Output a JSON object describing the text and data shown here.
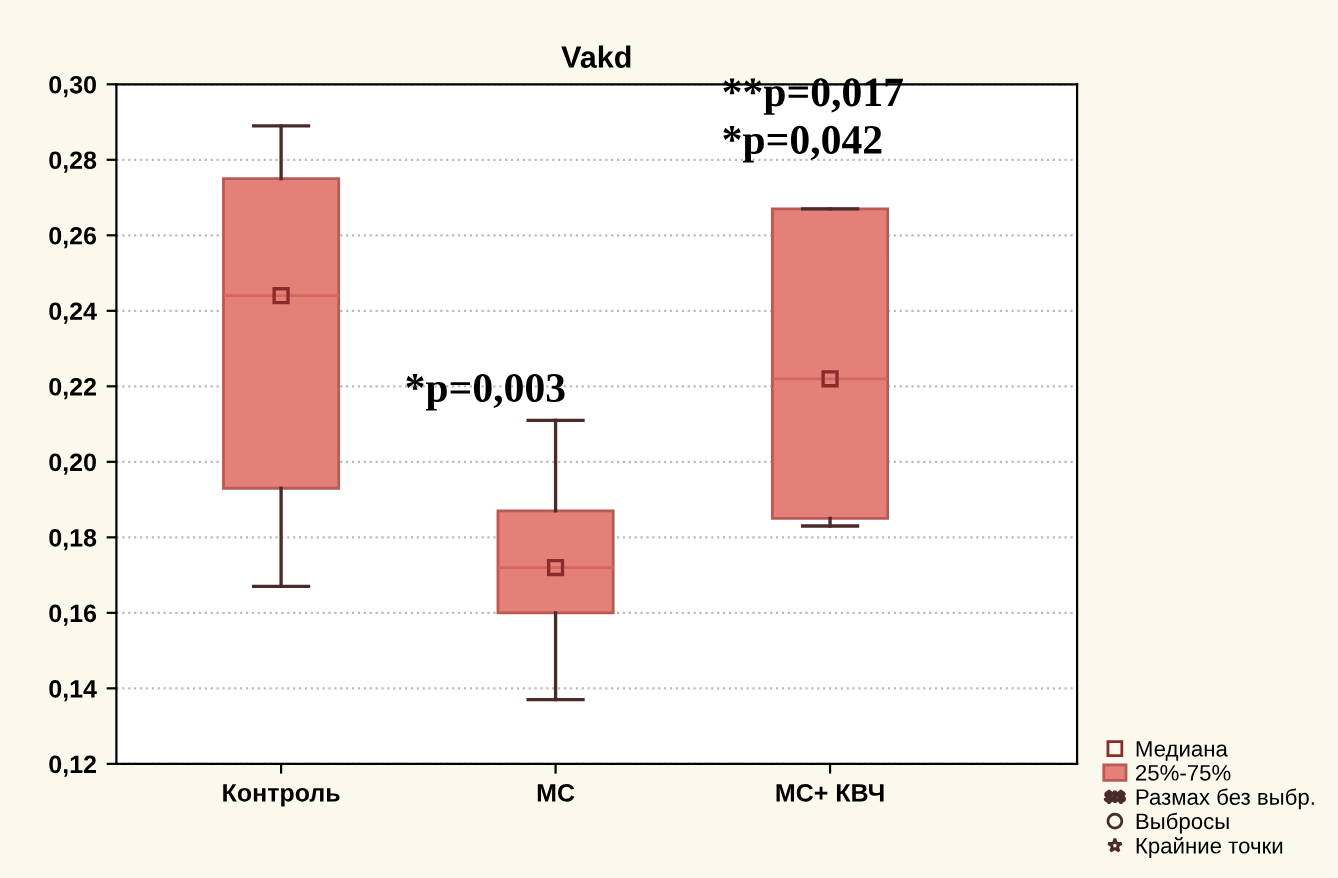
{
  "chart_data": {
    "type": "box",
    "title": "Vakd",
    "categories": [
      "Контроль",
      "МС",
      "МС+ КВЧ"
    ],
    "ylim": [
      0.12,
      0.3
    ],
    "yticks": [
      {
        "value": 0.12,
        "label": "0,12"
      },
      {
        "value": 0.14,
        "label": "0,14"
      },
      {
        "value": 0.16,
        "label": "0,16"
      },
      {
        "value": 0.18,
        "label": "0,18"
      },
      {
        "value": 0.2,
        "label": "0,20"
      },
      {
        "value": 0.22,
        "label": "0,22"
      },
      {
        "value": 0.24,
        "label": "0,24"
      },
      {
        "value": 0.26,
        "label": "0,26"
      },
      {
        "value": 0.28,
        "label": "0,28"
      },
      {
        "value": 0.3,
        "label": "0,30"
      }
    ],
    "grid": "y",
    "legend": "bottom right",
    "series": [
      {
        "type": "scatter",
        "name": "Медиана",
        "color": "#8b2a2a",
        "marker": "square",
        "values": [
          0.244,
          0.172,
          0.222
        ]
      },
      {
        "name": "25%-75%",
        "color": "#e58078",
        "boxes": [
          {
            "low": 0.167,
            "q1": 0.193,
            "median": 0.244,
            "q3": 0.275,
            "high": 0.289
          },
          {
            "low": 0.137,
            "q1": 0.16,
            "median": 0.172,
            "q3": 0.187,
            "high": 0.211
          },
          {
            "low": 0.183,
            "q1": 0.185,
            "median": 0.222,
            "q3": 0.267,
            "high": 0.267
          }
        ]
      },
      {
        "type": "line",
        "name": "Размах без выбр.",
        "color": "#4a2a2a",
        "marker": "none",
        "values": [
          null,
          null,
          null
        ]
      },
      {
        "type": "scatter",
        "name": "Выбросы",
        "color": "#4a2a2a",
        "marker": "circle",
        "values": [
          null,
          null,
          null
        ]
      },
      {
        "type": "scatter",
        "name": "Крайние точки",
        "color": "#4a2a2a",
        "marker": "star",
        "values": [
          null,
          null,
          null
        ]
      }
    ],
    "annotations": [
      "*p=0,003",
      "**p=0,017",
      "*p=0,042"
    ]
  }
}
